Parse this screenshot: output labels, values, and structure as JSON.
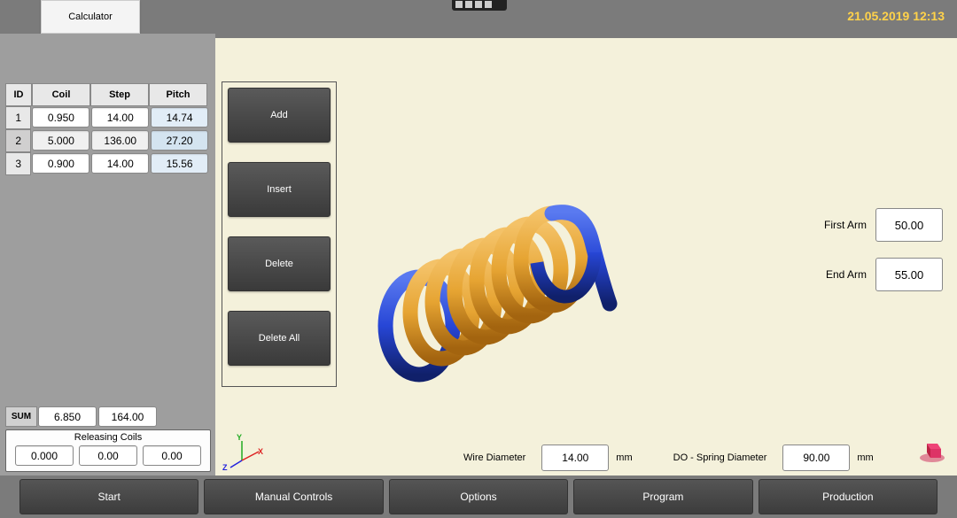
{
  "topbar": {
    "calculator_label": "Calculator",
    "datetime": "21.05.2019 12:13"
  },
  "table": {
    "headers": {
      "id": "ID",
      "coil": "Coil",
      "step": "Step",
      "pitch": "Pitch"
    },
    "rows": [
      {
        "id": "1",
        "coil": "0.950",
        "step": "14.00",
        "pitch": "14.74",
        "selected": false
      },
      {
        "id": "2",
        "coil": "5.000",
        "step": "136.00",
        "pitch": "27.20",
        "selected": true
      },
      {
        "id": "3",
        "coil": "0.900",
        "step": "14.00",
        "pitch": "15.56",
        "selected": false
      }
    ],
    "sum_label": "SUM",
    "sum_coil": "6.850",
    "sum_step": "164.00"
  },
  "releasing": {
    "label": "Releasing Coils",
    "values": [
      "0.000",
      "0.00",
      "0.00"
    ]
  },
  "actions": {
    "add": "Add",
    "insert": "Insert",
    "delete": "Delete",
    "delete_all": "Delete All"
  },
  "right_params": {
    "first_arm_label": "First Arm",
    "first_arm_value": "50.00",
    "end_arm_label": "End Arm",
    "end_arm_value": "55.00"
  },
  "bottom_params": {
    "wire_diameter_label": "Wire Diameter",
    "wire_diameter_value": "14.00",
    "wire_diameter_unit": "mm",
    "do_diameter_label": "DO - Spring Diameter",
    "do_diameter_value": "90.00",
    "do_diameter_unit": "mm"
  },
  "axis": {
    "x": "X",
    "y": "Y",
    "z": "Z"
  },
  "nav": {
    "start": "Start",
    "manual": "Manual Controls",
    "options": "Options",
    "program": "Program",
    "production": "Production"
  },
  "colors": {
    "spring_body": "#e6a432",
    "spring_body_dark": "#b87818",
    "spring_end": "#2746d6",
    "spring_end_dark": "#14288a",
    "viewport_bg": "#f4f1db",
    "panel_bg": "#9e9e9e",
    "date_color": "#ffd24a"
  }
}
